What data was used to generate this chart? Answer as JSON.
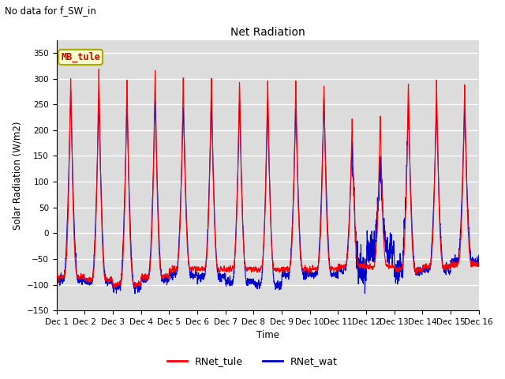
{
  "title": "Net Radiation",
  "suptitle": "No data for f_SW_in",
  "ylabel": "Solar Radiation (W/m2)",
  "xlabel": "Time",
  "ylim": [
    -150,
    375
  ],
  "yticks": [
    -150,
    -100,
    -50,
    0,
    50,
    100,
    150,
    200,
    250,
    300,
    350
  ],
  "xtick_labels": [
    "Dec 1",
    "Dec 2",
    "Dec 3",
    "Dec 4",
    "Dec 5",
    "Dec 6",
    "Dec 7",
    "Dec 8",
    "Dec 9",
    "Dec 10",
    "Dec 11",
    "Dec 12",
    "Dec 13",
    "Dec 14",
    "Dec 15",
    "Dec 16"
  ],
  "n_days": 15,
  "color_tule": "#FF0000",
  "color_wat": "#0000CC",
  "legend_box_facecolor": "#FFFFCC",
  "legend_box_edgecolor": "#AAAA00",
  "legend_box_text": "MB_tule",
  "legend_box_textcolor": "#CC0000",
  "bg_color": "#DCDCDC",
  "grid_color": "#FFFFFF",
  "samples_per_day": 288
}
